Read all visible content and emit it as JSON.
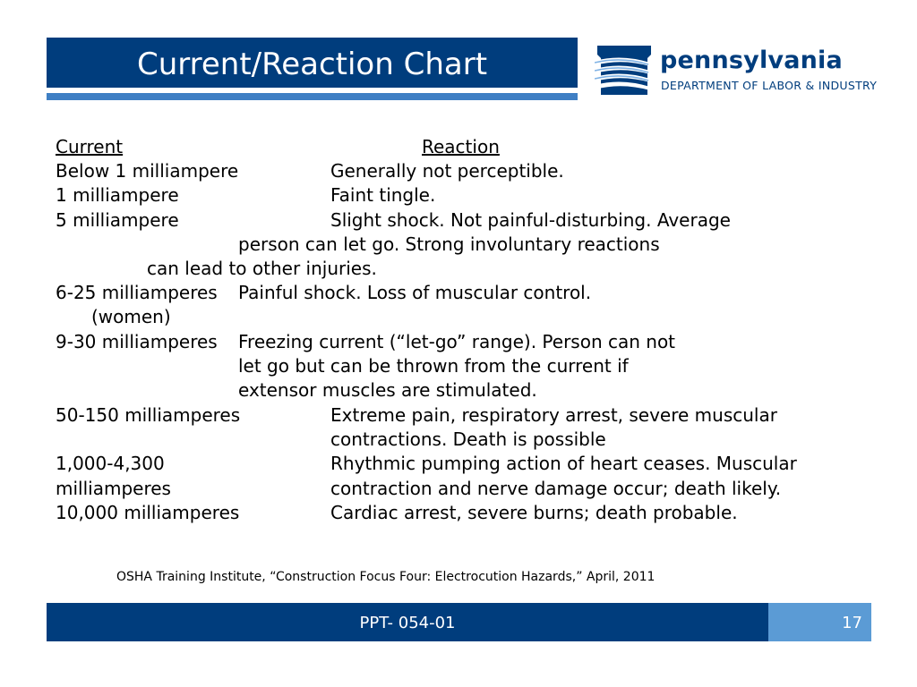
{
  "slide": {
    "title": "Current/Reaction Chart",
    "colors": {
      "title_bar": "#003d7d",
      "underline": "#3f7fc4",
      "footer_bar": "#003d7d",
      "page_box": "#5b9bd5"
    }
  },
  "logo": {
    "wordmark": "pennsylvania",
    "subtitle": "DEPARTMENT OF LABOR & INDUSTRY",
    "icon": "keystone-icon"
  },
  "table": {
    "header_current": "Current",
    "header_reaction": "Reaction",
    "rows": [
      {
        "current": "Below 1 milliampere",
        "reaction": "Generally not perceptible."
      },
      {
        "current": "1 milliampere",
        "reaction": "Faint tingle."
      },
      {
        "current": "5 milliampere",
        "reaction": [
          "Slight shock. Not painful-disturbing. Average",
          "person can let go. Strong involuntary reactions",
          "can lead to other injuries."
        ]
      },
      {
        "current": [
          "6-25 milliamperes",
          "(women)"
        ],
        "reaction": "Painful shock. Loss of muscular control."
      },
      {
        "current": "9-30 milliamperes",
        "reaction": [
          "Freezing current (“let-go” range). Person can not",
          "let go but can be thrown from the current if",
          "extensor muscles are stimulated."
        ]
      },
      {
        "current": "50-150 milliamperes",
        "reaction": [
          "Extreme pain, respiratory arrest, severe muscular",
          "contractions. Death is possible"
        ]
      },
      {
        "current": [
          "1,000-4,300",
          "milliamperes"
        ],
        "reaction": [
          "Rhythmic pumping action of heart ceases. Muscular",
          "contraction and nerve damage occur; death likely."
        ]
      },
      {
        "current": "10,000 milliamperes",
        "reaction": "Cardiac arrest, severe burns; death probable."
      }
    ]
  },
  "citation": "OSHA Training Institute, “Construction Focus Four: Electrocution Hazards,” April, 2011",
  "footer": {
    "code": "PPT- 054-01",
    "page": "17"
  }
}
